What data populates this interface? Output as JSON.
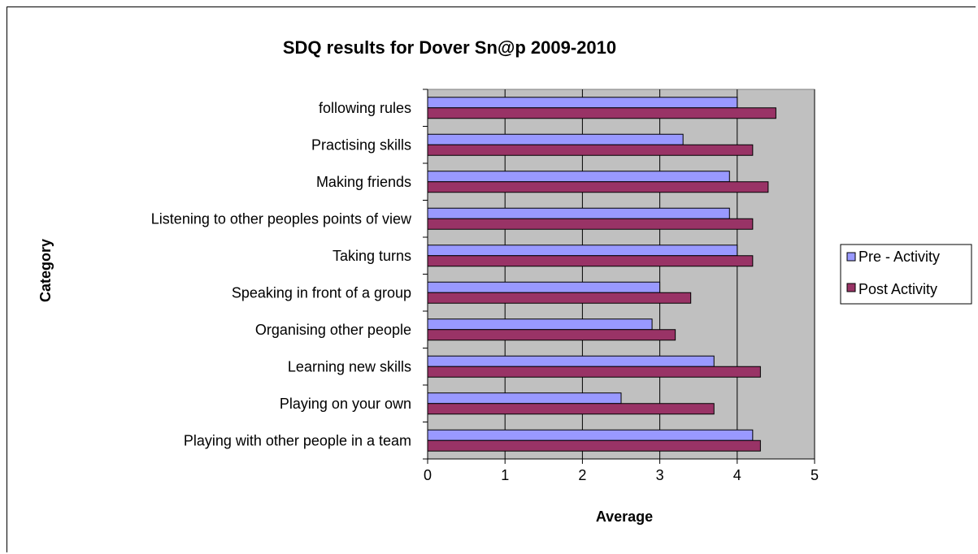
{
  "chart_data": {
    "type": "bar",
    "orientation": "horizontal",
    "title": "SDQ results for Dover Sn@p 2009-2010",
    "xlabel": "Average",
    "ylabel": "Category",
    "xlim": [
      0,
      5
    ],
    "xticks": [
      "0",
      "1",
      "2",
      "3",
      "4",
      "5"
    ],
    "grid": true,
    "legend_position": "right",
    "categories": [
      "following rules",
      "Practising skills",
      "Making friends",
      "Listening to other peoples points of view",
      "Taking turns",
      "Speaking in front of a group",
      "Organising other people",
      "Learning new skills",
      "Playing on your own",
      "Playing with other people in a team"
    ],
    "series": [
      {
        "name": "Pre - Activity",
        "color": "#9999ff",
        "values": [
          4.0,
          3.3,
          3.9,
          3.9,
          4.0,
          3.0,
          2.9,
          3.7,
          2.5,
          4.2
        ]
      },
      {
        "name": "Post Activity",
        "color": "#993366",
        "values": [
          4.5,
          4.2,
          4.4,
          4.2,
          4.2,
          3.4,
          3.2,
          4.3,
          3.7,
          4.3
        ]
      }
    ],
    "plot_background": "#c0c0c0"
  }
}
